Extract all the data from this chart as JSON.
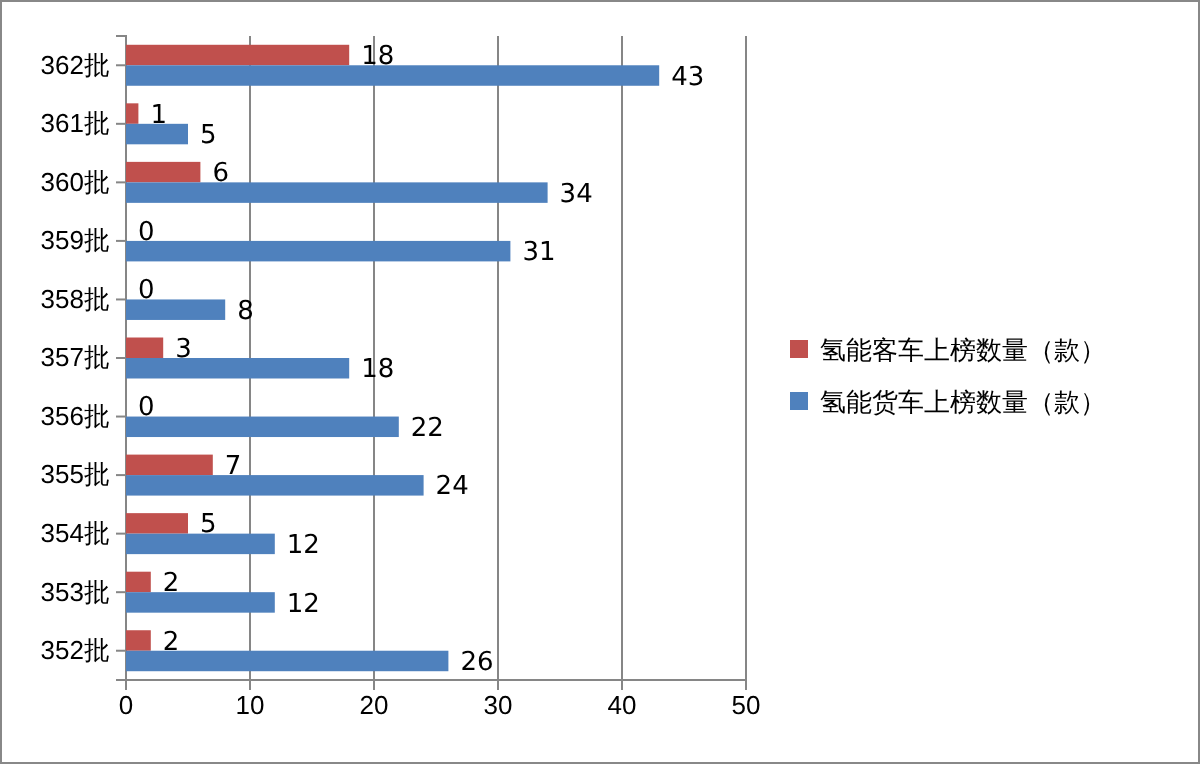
{
  "chart_data": {
    "type": "bar",
    "orientation": "horizontal",
    "categories": [
      "362批",
      "361批",
      "360批",
      "359批",
      "358批",
      "357批",
      "356批",
      "355批",
      "354批",
      "353批",
      "352批"
    ],
    "series": [
      {
        "name": "氢能客车上榜数量（款）",
        "color": "#c0504d",
        "values": [
          18,
          1,
          6,
          0,
          0,
          3,
          0,
          7,
          5,
          2,
          2
        ]
      },
      {
        "name": "氢能货车上榜数量（款）",
        "color": "#4f81bd",
        "values": [
          43,
          5,
          34,
          31,
          8,
          18,
          22,
          24,
          12,
          12,
          26
        ]
      }
    ],
    "xlim": [
      0,
      50
    ],
    "xticks": [
      0,
      10,
      20,
      30,
      40,
      50
    ],
    "grid": "x",
    "legend": "right",
    "data_labels": true
  }
}
